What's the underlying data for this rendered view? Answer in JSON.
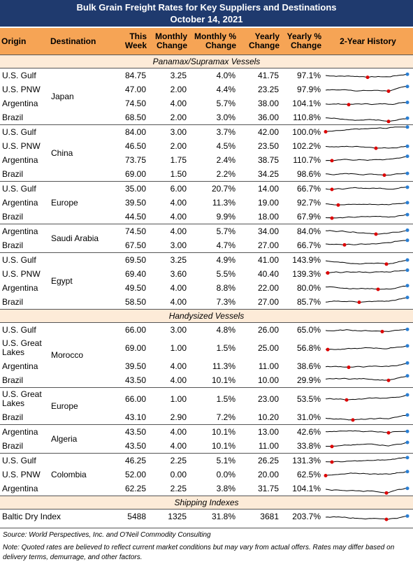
{
  "title": "Bulk Grain Freight Rates for Key Suppliers and Destinations",
  "date": "October 14, 2021",
  "columns": [
    "Origin",
    "Destination",
    "This Week",
    "Monthly Change",
    "Monthly % Change",
    "Yearly Change",
    "Yearly % Change",
    "2-Year History"
  ],
  "sections": [
    {
      "title": "Panamax/Supramax Vessels",
      "groups": [
        {
          "destination": "Japan",
          "rows": [
            [
              "U.S. Gulf",
              "84.75",
              "3.25",
              "4.0%",
              "41.75",
              "97.1%"
            ],
            [
              "U.S. PNW",
              "47.00",
              "2.00",
              "4.4%",
              "23.25",
              "97.9%"
            ],
            [
              "Argentina",
              "74.50",
              "4.00",
              "5.7%",
              "38.00",
              "104.1%"
            ],
            [
              "Brazil",
              "68.50",
              "2.00",
              "3.0%",
              "36.00",
              "110.8%"
            ]
          ]
        },
        {
          "destination": "China",
          "rows": [
            [
              "U.S. Gulf",
              "84.00",
              "3.00",
              "3.7%",
              "42.00",
              "100.0%"
            ],
            [
              "U.S. PNW",
              "46.50",
              "2.00",
              "4.5%",
              "23.50",
              "102.2%"
            ],
            [
              "Argentina",
              "73.75",
              "1.75",
              "2.4%",
              "38.75",
              "110.7%"
            ],
            [
              "Brazil",
              "69.00",
              "1.50",
              "2.2%",
              "34.25",
              "98.6%"
            ]
          ]
        },
        {
          "destination": "Europe",
          "rows": [
            [
              "U.S. Gulf",
              "35.00",
              "6.00",
              "20.7%",
              "14.00",
              "66.7%"
            ],
            [
              "Argentina",
              "39.50",
              "4.00",
              "11.3%",
              "19.00",
              "92.7%"
            ],
            [
              "Brazil",
              "44.50",
              "4.00",
              "9.9%",
              "18.00",
              "67.9%"
            ]
          ]
        },
        {
          "destination": "Saudi Arabia",
          "rows": [
            [
              "Argentina",
              "74.50",
              "4.00",
              "5.7%",
              "34.00",
              "84.0%"
            ],
            [
              "Brazil",
              "67.50",
              "3.00",
              "4.7%",
              "27.00",
              "66.7%"
            ]
          ]
        },
        {
          "destination": "Egypt",
          "rows": [
            [
              "U.S. Gulf",
              "69.50",
              "3.25",
              "4.9%",
              "41.00",
              "143.9%"
            ],
            [
              "U.S. PNW",
              "69.40",
              "3.60",
              "5.5%",
              "40.40",
              "139.3%"
            ],
            [
              "Argentina",
              "49.50",
              "4.00",
              "8.8%",
              "22.00",
              "80.0%"
            ],
            [
              "Brazil",
              "58.50",
              "4.00",
              "7.3%",
              "27.00",
              "85.7%"
            ]
          ]
        }
      ]
    },
    {
      "title": "Handysized Vessels",
      "groups": [
        {
          "destination": "Morocco",
          "rows": [
            [
              "U.S. Gulf",
              "66.00",
              "3.00",
              "4.8%",
              "26.00",
              "65.0%"
            ],
            [
              "U.S. Great Lakes",
              "69.00",
              "1.00",
              "1.5%",
              "25.00",
              "56.8%"
            ],
            [
              "Argentina",
              "39.50",
              "4.00",
              "11.3%",
              "11.00",
              "38.6%"
            ],
            [
              "Brazil",
              "43.50",
              "4.00",
              "10.1%",
              "10.00",
              "29.9%"
            ]
          ]
        },
        {
          "destination": "Europe",
          "rows": [
            [
              "U.S. Great Lakes",
              "66.00",
              "1.00",
              "1.5%",
              "23.00",
              "53.5%"
            ],
            [
              "Brazil",
              "43.10",
              "2.90",
              "7.2%",
              "10.20",
              "31.0%"
            ]
          ]
        },
        {
          "destination": "Algeria",
          "rows": [
            [
              "Argentina",
              "43.50",
              "4.00",
              "10.1%",
              "13.00",
              "42.6%"
            ],
            [
              "Brazil",
              "43.50",
              "4.00",
              "10.1%",
              "11.00",
              "33.8%"
            ]
          ]
        },
        {
          "destination": "Colombia",
          "rows": [
            [
              "U.S. Gulf",
              "46.25",
              "2.25",
              "5.1%",
              "26.25",
              "131.3%"
            ],
            [
              "U.S. PNW",
              "52.00",
              "0.00",
              "0.0%",
              "20.00",
              "62.5%"
            ],
            [
              "Argentina",
              "62.25",
              "2.25",
              "3.8%",
              "31.75",
              "104.1%"
            ]
          ]
        }
      ]
    },
    {
      "title": "Shipping Indexes",
      "groups": [
        {
          "rows": [
            [
              "Baltic Dry Index",
              "5488",
              "1325",
              "31.8%",
              "3681",
              "203.7%"
            ]
          ]
        }
      ]
    }
  ],
  "source": "Source: World Perspectives, Inc. and O'Neil Commodity Consulting",
  "note": "Note: Quoted rates are believed to reflect current market conditions but may vary from actual offers. Rates may differ based on delivery terms, demurrage, and other factors."
}
